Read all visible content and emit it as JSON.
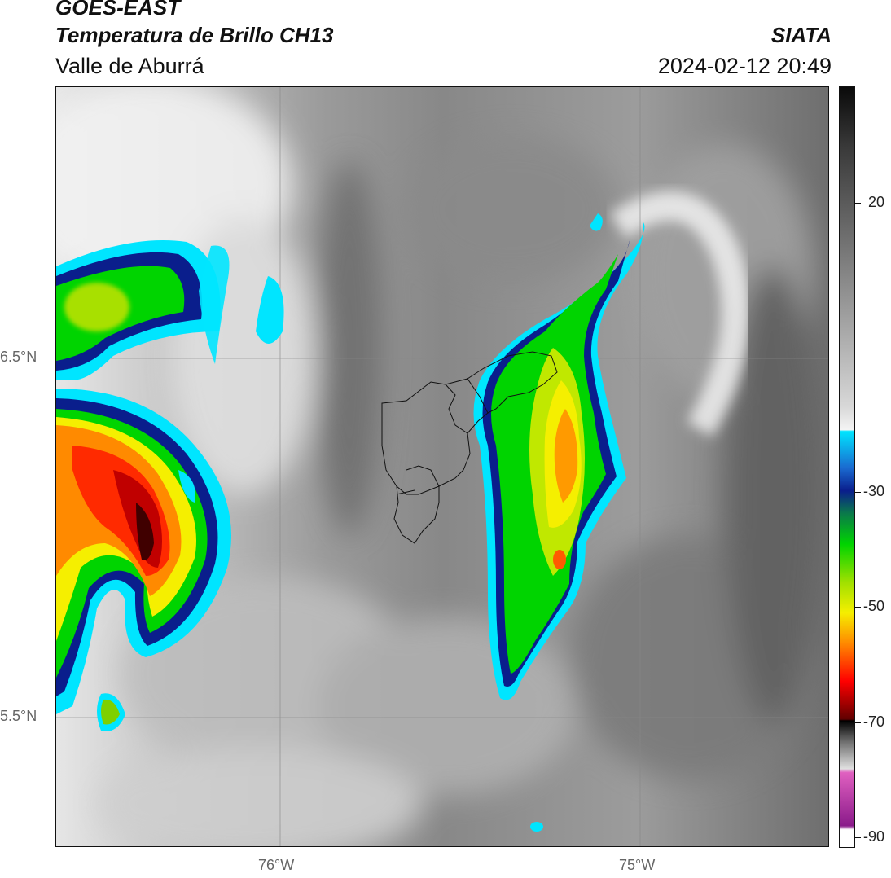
{
  "header": {
    "satellite": "GOES-EAST",
    "product": "Temperatura de Brillo CH13",
    "organization": "SIATA",
    "region": "Valle de Aburrá",
    "timestamp": "2024-02-12 20:49"
  },
  "map": {
    "lat_labels": [
      "6.5°N",
      "5.5°N"
    ],
    "lon_labels": [
      "76°W",
      "75°W"
    ]
  },
  "colorbar": {
    "tick_labels": [
      "20",
      "-30",
      "-50",
      "-70",
      "-90"
    ],
    "palette": {
      "warm": "#808080",
      "cyan": "#00e5ff",
      "navy": "#0a1e8c",
      "green": "#00d400",
      "yellow": "#f5ef00",
      "orange": "#ff8a00",
      "red": "#ff0000",
      "darkred": "#400000",
      "magenta": "#e040c0"
    }
  }
}
